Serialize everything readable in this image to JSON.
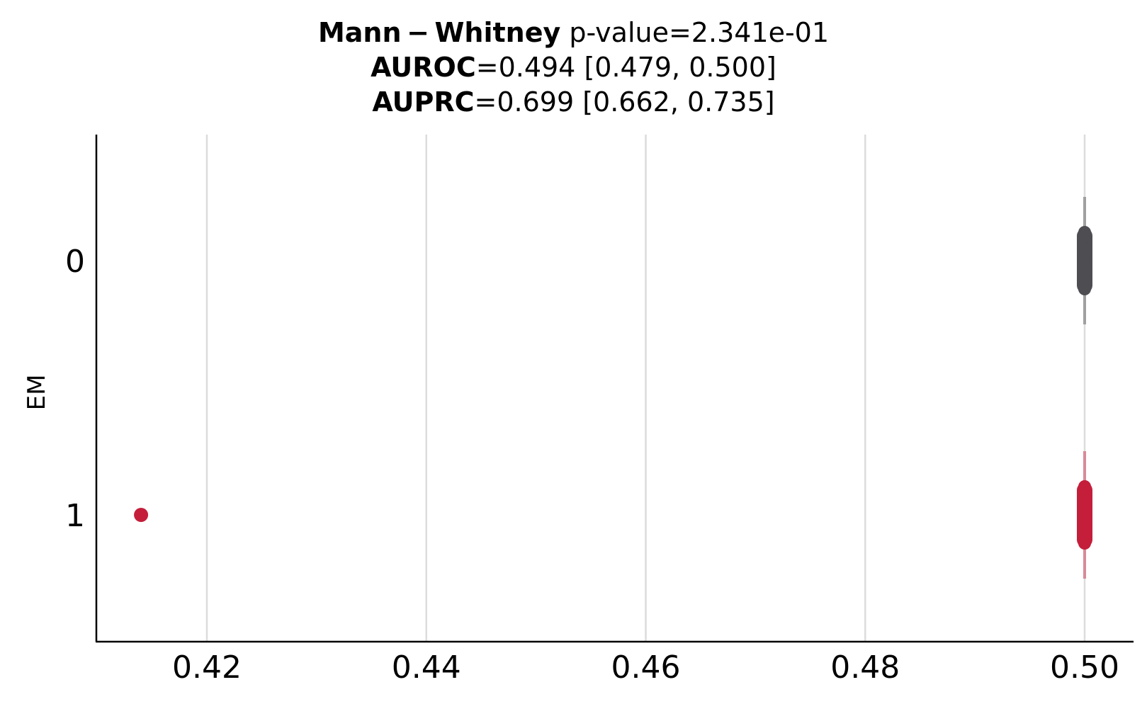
{
  "chart_data": {
    "type": "scatter",
    "orientation": "horizontal",
    "title": {
      "line1_bold": "Mann − Whitney",
      "line1_rest": " p-value=2.341e-01",
      "line2_bold": "AUROC",
      "line2_rest": "=0.494 [0.479, 0.500]",
      "line3_bold": "AUPRC",
      "line3_rest": "=0.699 [0.662, 0.735]"
    },
    "xlabel": "",
    "ylabel": "EM",
    "xlim": [
      0.41,
      0.5044
    ],
    "xticks": [
      0.42,
      0.44,
      0.46,
      0.48,
      0.5
    ],
    "xtick_labels": [
      "0.42",
      "0.44",
      "0.46",
      "0.48",
      "0.50"
    ],
    "categories": [
      "0",
      "1"
    ],
    "grid": "vertical",
    "series": [
      {
        "category": "0",
        "color": "#4d4d52",
        "whisker_color": "#a0a0a0",
        "box_color": "#4d4d52",
        "points": [
          0.5,
          0.5,
          0.5,
          0.5,
          0.5,
          0.5,
          0.5,
          0.5
        ],
        "outliers": []
      },
      {
        "category": "1",
        "color": "#c41e3a",
        "whisker_color": "#d88a98",
        "box_color": "#c41e3a",
        "points": [
          0.5,
          0.5,
          0.5,
          0.5,
          0.5,
          0.5,
          0.5,
          0.5
        ],
        "outliers": [
          0.414
        ]
      }
    ]
  }
}
